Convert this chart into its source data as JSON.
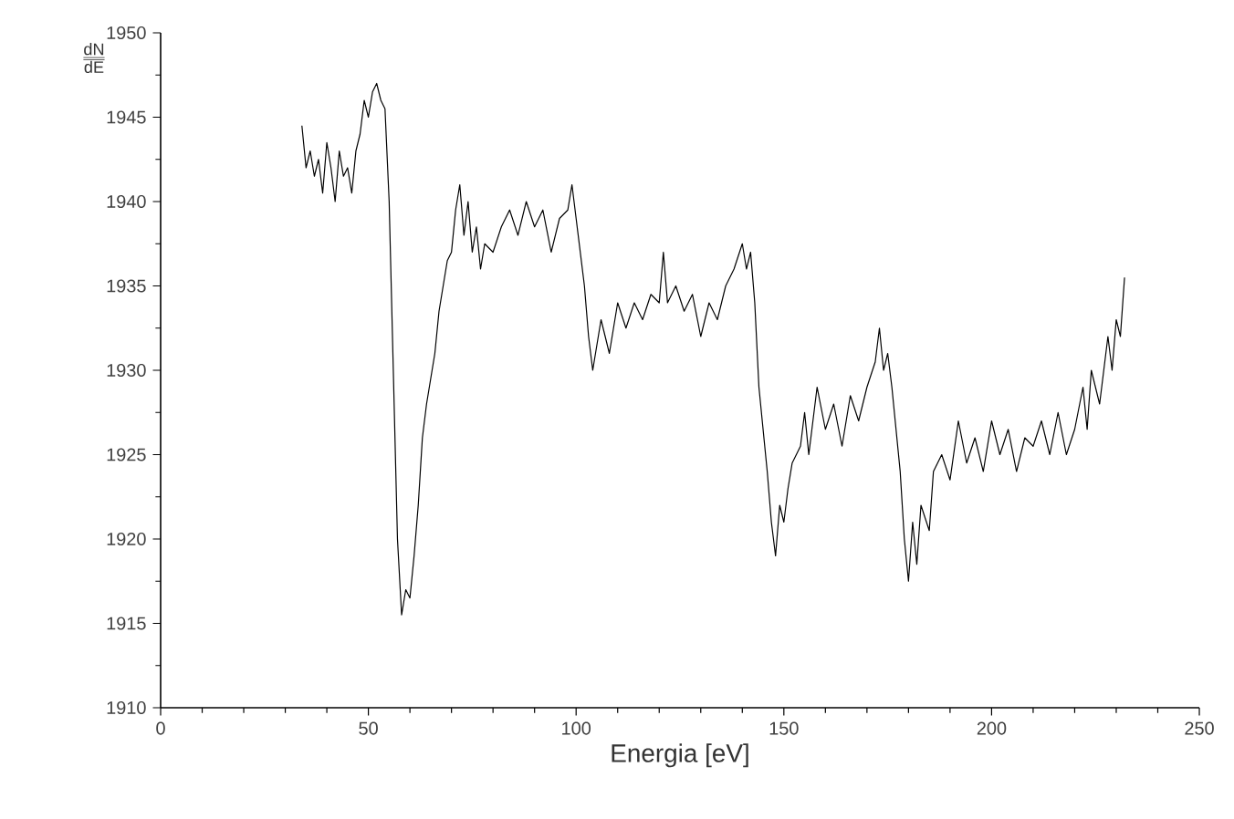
{
  "chart_data": {
    "type": "line",
    "xlabel": "Energia [eV]",
    "ylabel": "\\frac{\\underline{\\mathrm{dN}}}{\\mathrm{dE}}",
    "xlim": [
      0,
      250
    ],
    "xticks": [
      0,
      50,
      100,
      150,
      200,
      250
    ],
    "ylim": [
      1910,
      1950
    ],
    "yticks": [
      1910,
      1915,
      1920,
      1925,
      1930,
      1935,
      1940,
      1945,
      1950
    ],
    "marker": "none",
    "line_style": "solid",
    "series": [
      {
        "color": "#000000",
        "x": [
          34,
          35,
          36,
          37,
          38,
          39,
          40,
          41,
          42,
          43,
          44,
          45,
          46,
          47,
          48,
          49,
          50,
          51,
          52,
          53,
          54,
          55,
          56,
          57,
          58,
          59,
          60,
          61,
          62,
          63,
          64,
          65,
          66,
          67,
          68,
          69,
          70,
          71,
          72,
          73,
          74,
          75,
          76,
          77,
          78,
          80,
          82,
          84,
          86,
          88,
          90,
          92,
          94,
          96,
          98,
          99,
          100,
          101,
          102,
          103,
          104,
          106,
          108,
          110,
          112,
          114,
          116,
          118,
          120,
          121,
          122,
          124,
          126,
          128,
          130,
          132,
          134,
          136,
          138,
          140,
          141,
          142,
          143,
          144,
          146,
          147,
          148,
          149,
          150,
          151,
          152,
          154,
          155,
          156,
          158,
          160,
          162,
          164,
          166,
          168,
          170,
          172,
          173,
          174,
          175,
          176,
          178,
          179,
          180,
          181,
          182,
          183,
          185,
          186,
          188,
          190,
          192,
          194,
          196,
          198,
          200,
          202,
          204,
          206,
          208,
          210,
          212,
          214,
          216,
          218,
          220,
          222,
          223,
          224,
          226,
          228,
          229,
          230,
          231,
          232
        ],
        "values": [
          1944.5,
          1942,
          1943,
          1941.5,
          1942.5,
          1940.5,
          1943.5,
          1942,
          1940,
          1943,
          1941.5,
          1942,
          1940.5,
          1943,
          1944,
          1946,
          1945,
          1946.5,
          1947,
          1946,
          1945.5,
          1940,
          1930,
          1920,
          1915.5,
          1917,
          1916.5,
          1919,
          1922,
          1926,
          1928,
          1929.5,
          1931,
          1933.5,
          1935,
          1936.5,
          1937,
          1939.5,
          1941,
          1938,
          1940,
          1937,
          1938.5,
          1936,
          1937.5,
          1937,
          1938.5,
          1939.5,
          1938,
          1940,
          1938.5,
          1939.5,
          1937,
          1939,
          1939.5,
          1941,
          1939,
          1937,
          1935,
          1932,
          1930,
          1933,
          1931,
          1934,
          1932.5,
          1934,
          1933,
          1934.5,
          1934,
          1937,
          1934,
          1935,
          1933.5,
          1934.5,
          1932,
          1934,
          1933,
          1935,
          1936,
          1937.5,
          1936,
          1937,
          1934,
          1929,
          1924,
          1921,
          1919,
          1922,
          1921,
          1923,
          1924.5,
          1925.5,
          1927.5,
          1925,
          1929,
          1926.5,
          1928,
          1925.5,
          1928.5,
          1927,
          1929,
          1930.5,
          1932.5,
          1930,
          1931,
          1929,
          1924,
          1920,
          1917.5,
          1921,
          1918.5,
          1922,
          1920.5,
          1924,
          1925,
          1923.5,
          1927,
          1924.5,
          1926,
          1924,
          1927,
          1925,
          1926.5,
          1924,
          1926,
          1925.5,
          1927,
          1925,
          1927.5,
          1925,
          1926.5,
          1929,
          1926.5,
          1930,
          1928,
          1932,
          1930,
          1933,
          1932,
          1935.5
        ]
      }
    ]
  }
}
